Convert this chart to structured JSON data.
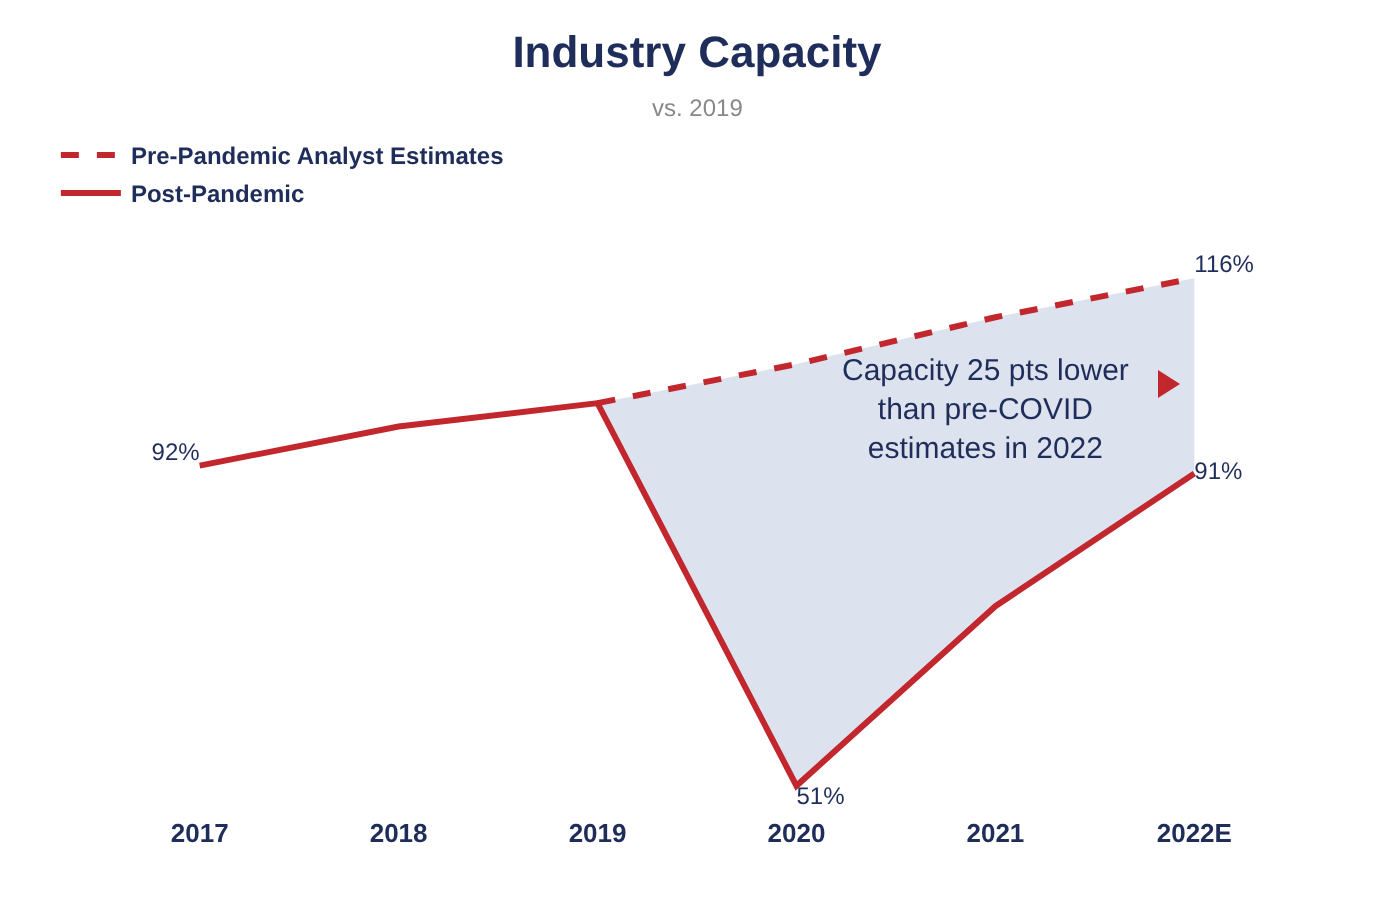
{
  "chart_data": {
    "type": "line",
    "title": "Industry Capacity",
    "subtitle": "vs. 2019",
    "categories": [
      "2017",
      "2018",
      "2019",
      "2020",
      "2021",
      "2022E"
    ],
    "series": [
      {
        "name": "Post-Pandemic",
        "color": "#c1272d",
        "line_style": "solid",
        "values": [
          92,
          97,
          100,
          51,
          74,
          91
        ],
        "value_labels": [
          "92%",
          null,
          null,
          "51%",
          null,
          "91%"
        ]
      },
      {
        "name": "Pre-Pandemic Analyst Estimates",
        "type": "area",
        "color": "#c1272d",
        "line_style": "dashed",
        "values": [
          null,
          null,
          100,
          105,
          111,
          116
        ],
        "value_labels": [
          null,
          null,
          null,
          null,
          null,
          "116%"
        ]
      }
    ],
    "annotations": [
      "Capacity 25 pts lower than pre-COVID estimates in 2022"
    ],
    "legend": "top left",
    "grid": false,
    "marker": "none",
    "tick_labels": "x"
  }
}
